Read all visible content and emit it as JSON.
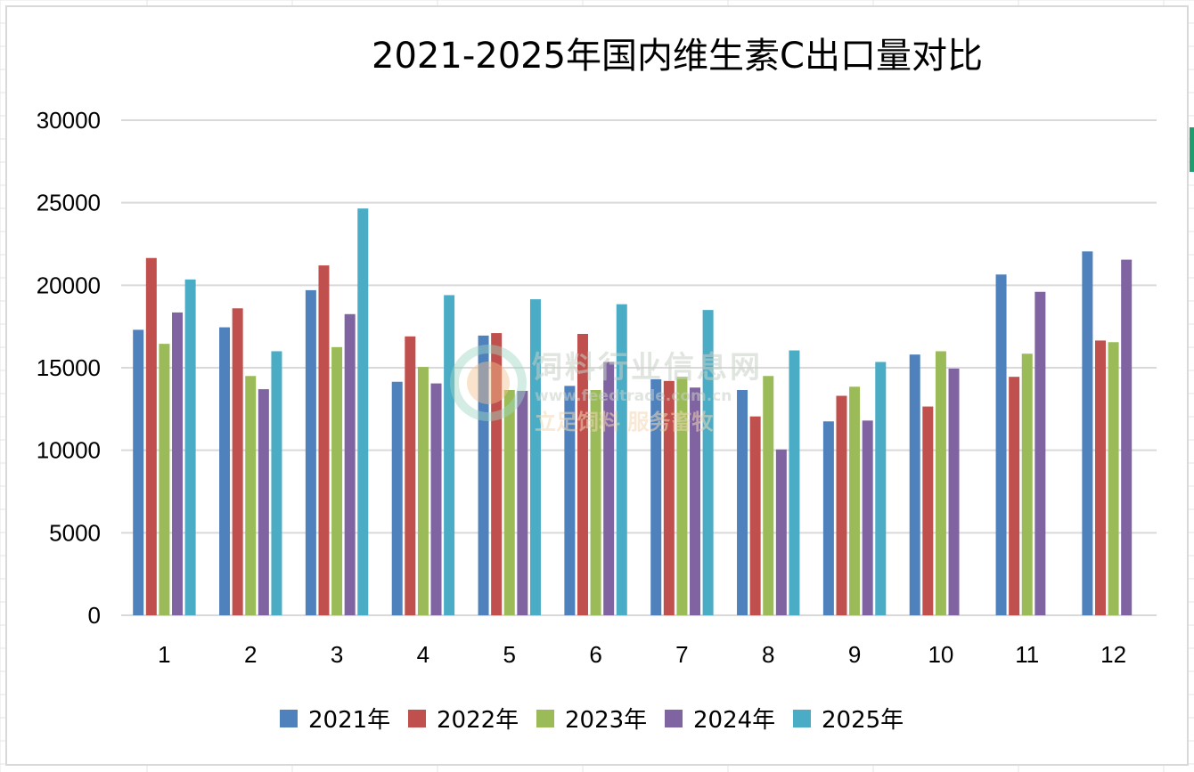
{
  "colors": {
    "series": [
      "#4f81bd",
      "#c0504d",
      "#9bbb59",
      "#8064a2",
      "#4bacc6"
    ],
    "grid": "#d9d9d9",
    "accent_tab": "#1e9e6e"
  },
  "chart_data": {
    "type": "bar",
    "title": "2021-2025年国内维生素C出口量对比",
    "xlabel": "",
    "ylabel": "",
    "ylim": [
      0,
      30000
    ],
    "yticks": [
      0,
      5000,
      10000,
      15000,
      20000,
      25000,
      30000
    ],
    "grid": true,
    "legend_position": "bottom",
    "categories": [
      "1",
      "2",
      "3",
      "4",
      "5",
      "6",
      "7",
      "8",
      "9",
      "10",
      "11",
      "12"
    ],
    "series": [
      {
        "name": "2021年",
        "values": [
          17300,
          17450,
          19700,
          14150,
          16950,
          13900,
          14300,
          13650,
          11750,
          15800,
          20650,
          22050
        ]
      },
      {
        "name": "2022年",
        "values": [
          21650,
          18600,
          21200,
          16900,
          17100,
          17050,
          14200,
          12050,
          13300,
          12650,
          14450,
          16650
        ]
      },
      {
        "name": "2023年",
        "values": [
          16450,
          14500,
          16250,
          15050,
          13650,
          13650,
          14450,
          14500,
          13850,
          16000,
          15850,
          16550
        ]
      },
      {
        "name": "2024年",
        "values": [
          18350,
          13700,
          18250,
          14050,
          13600,
          15350,
          13800,
          10050,
          11800,
          14950,
          19600,
          21550
        ]
      },
      {
        "name": "2025年",
        "values": [
          20350,
          16000,
          24650,
          19400,
          19150,
          18850,
          18500,
          16050,
          15350,
          null,
          null,
          null
        ]
      }
    ]
  },
  "watermark": {
    "name": "饲料行业信息网",
    "url": "www.feedtrade.com.cn",
    "slogan": "立足饲料 服务畜牧"
  }
}
